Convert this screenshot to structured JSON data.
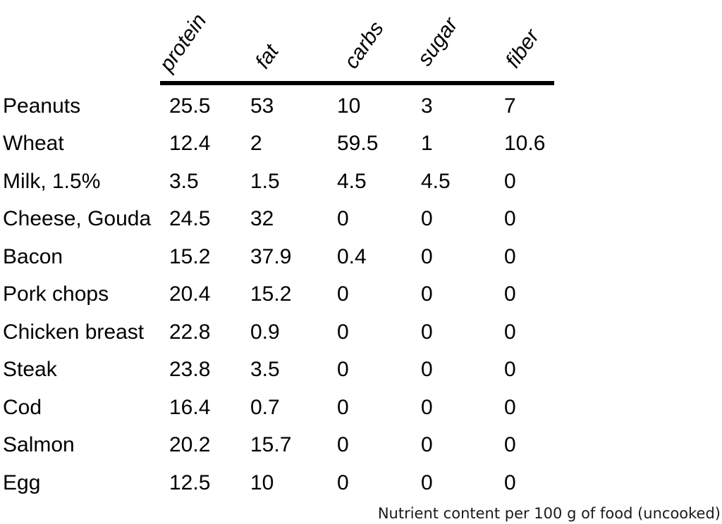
{
  "chart_data": {
    "type": "table",
    "caption": "Nutrient content per 100 g of food (uncooked)",
    "columns": [
      "protein",
      "fat",
      "carbs",
      "sugar",
      "fiber"
    ],
    "rows": [
      {
        "name": "Peanuts",
        "values": [
          25.5,
          53,
          10,
          3,
          7
        ]
      },
      {
        "name": "Wheat",
        "values": [
          12.4,
          2,
          59.5,
          1,
          10.6
        ]
      },
      {
        "name": "Milk, 1.5%",
        "values": [
          3.5,
          1.5,
          4.5,
          4.5,
          0
        ]
      },
      {
        "name": "Cheese, Gouda",
        "values": [
          24.5,
          32,
          0,
          0,
          0
        ]
      },
      {
        "name": "Bacon",
        "values": [
          15.2,
          37.9,
          0.4,
          0,
          0
        ]
      },
      {
        "name": "Pork chops",
        "values": [
          20.4,
          15.2,
          0,
          0,
          0
        ]
      },
      {
        "name": "Chicken breast",
        "values": [
          22.8,
          0.9,
          0,
          0,
          0
        ]
      },
      {
        "name": "Steak",
        "values": [
          23.8,
          3.5,
          0,
          0,
          0
        ]
      },
      {
        "name": "Cod",
        "values": [
          16.4,
          0.7,
          0,
          0,
          0
        ]
      },
      {
        "name": "Salmon",
        "values": [
          20.2,
          15.7,
          0,
          0,
          0
        ]
      },
      {
        "name": "Egg",
        "values": [
          12.5,
          10,
          0,
          0,
          0
        ]
      }
    ],
    "layout": {
      "header_rotation_deg": -55,
      "header_rule": true,
      "text_color": "#000000",
      "background": "#ffffff"
    }
  }
}
